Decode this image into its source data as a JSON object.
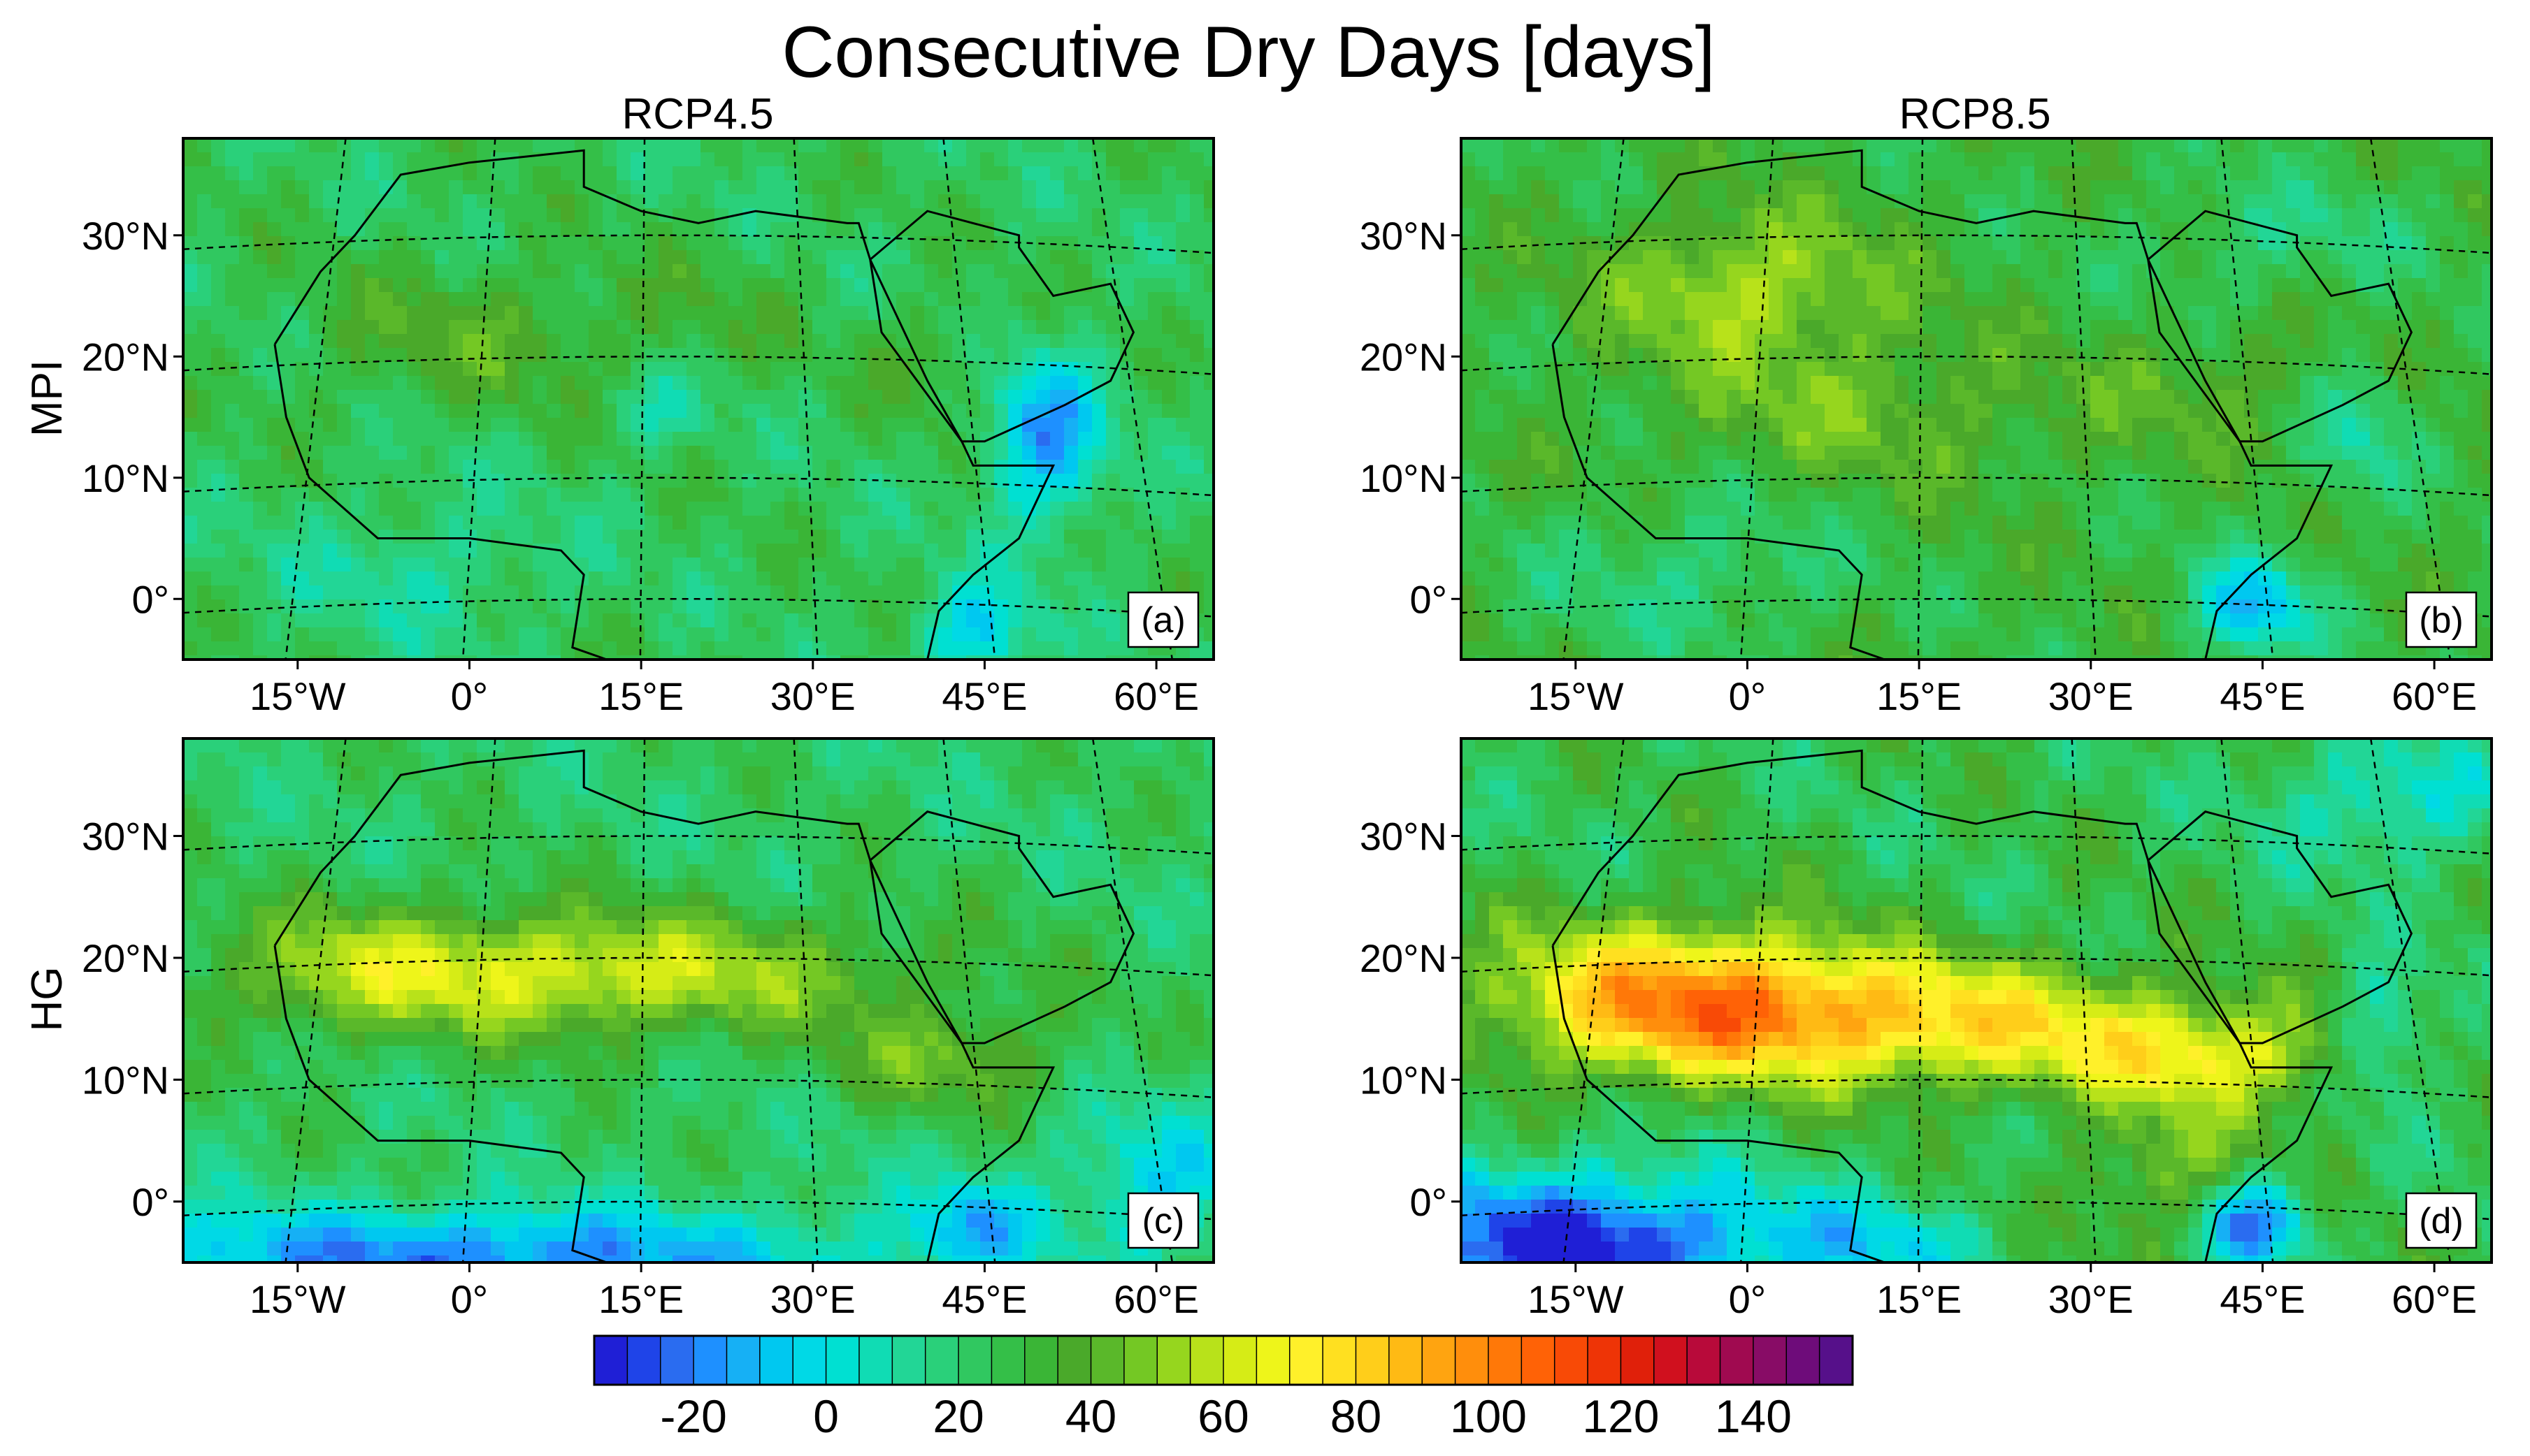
{
  "chart_data": {
    "type": "heatmap",
    "title": "Consecutive Dry Days [days]",
    "columns": [
      "RCP4.5",
      "RCP8.5"
    ],
    "rows": [
      "MPI",
      "HG"
    ],
    "x_ticks": [
      "15°W",
      "0°",
      "15°E",
      "30°E",
      "45°E",
      "60°E"
    ],
    "y_ticks": [
      "30°N",
      "20°N",
      "10°N",
      "0°"
    ],
    "lon_range": [
      -25,
      65
    ],
    "lat_range": [
      -5,
      38
    ],
    "colorbar": {
      "ticks": [
        "-20",
        "0",
        "20",
        "40",
        "60",
        "80",
        "100",
        "120",
        "140"
      ],
      "tick_values": [
        -20,
        0,
        20,
        40,
        60,
        80,
        100,
        120,
        140
      ],
      "range": [
        -35,
        155
      ],
      "levels": 38,
      "colors": [
        "#1f1fd6",
        "#1f44e8",
        "#2a6cf0",
        "#1e90ff",
        "#16b0f5",
        "#00c8f0",
        "#00d9e6",
        "#00e0d2",
        "#10dcb4",
        "#22d696",
        "#2ad07a",
        "#30c860",
        "#34bf48",
        "#3ab536",
        "#4aa92a",
        "#5ab82a",
        "#74c824",
        "#96d61e",
        "#b8e21a",
        "#d6ec16",
        "#eef51a",
        "#fff02a",
        "#ffe020",
        "#ffce1a",
        "#ffba14",
        "#ffa410",
        "#ff8e0c",
        "#ff7808",
        "#ff6206",
        "#f84a06",
        "#ee3406",
        "#e0200a",
        "#d0101e",
        "#b80a3a",
        "#a00a50",
        "#880c66",
        "#6e0c7a",
        "#56108a"
      ]
    },
    "panels": [
      {
        "id": "a",
        "label": "(a)",
        "model": "MPI",
        "scenario": "RCP4.5",
        "summary": "mostly 10-40 days; local maxima ~40-50 over northern Sahara and Arabia; negatives down to -20 near Somalia and Arabian Sea coast"
      },
      {
        "id": "b",
        "label": "(b)",
        "model": "MPI",
        "scenario": "RCP8.5",
        "summary": "mostly 20-50 days; maxima ~55-65 over northwest Sahara; negatives near Horn of Africa"
      },
      {
        "id": "c",
        "label": "(c)",
        "model": "HG",
        "scenario": "RCP4.5",
        "summary": "Sahel-Sahara band 50-75 days; Gulf of Guinea and southern Atlantic near 0 to -15"
      },
      {
        "id": "d",
        "label": "(d)",
        "model": "HG",
        "scenario": "RCP8.5",
        "summary": "band 60-125 days over West Africa and Sahel; strong negatives (-20) southern Atlantic and Somalia"
      }
    ]
  }
}
